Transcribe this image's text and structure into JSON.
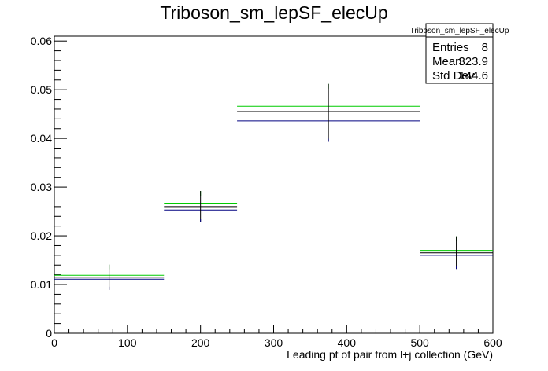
{
  "chart_data": {
    "type": "histogram",
    "title": "Triboson_sm_lepSF_elecUp",
    "xlabel": "Leading pt of pair from l+j collection (GeV)",
    "ylabel": "",
    "xlim": [
      0,
      600
    ],
    "ylim": [
      0,
      0.061
    ],
    "x_ticks": [
      0,
      100,
      200,
      300,
      400,
      500,
      600
    ],
    "x_tick_labels": [
      "0",
      "100",
      "200",
      "300",
      "400",
      "500",
      "600"
    ],
    "y_ticks": [
      0,
      0.01,
      0.02,
      0.03,
      0.04,
      0.05,
      0.06
    ],
    "y_tick_labels": [
      "0",
      "0.01",
      "0.02",
      "0.03",
      "0.04",
      "0.05",
      "0.06"
    ],
    "bins": [
      {
        "x_low": 0,
        "x_high": 150,
        "center": 75,
        "value": 0.0115,
        "err_low": 0.0089,
        "err_high": 0.0141,
        "up": 0.0119,
        "down": 0.0111
      },
      {
        "x_low": 150,
        "x_high": 250,
        "center": 200,
        "value": 0.026,
        "err_low": 0.0229,
        "err_high": 0.0292,
        "up": 0.0267,
        "down": 0.0253
      },
      {
        "x_low": 250,
        "x_high": 500,
        "center": 375,
        "value": 0.0455,
        "err_low": 0.0393,
        "err_high": 0.0512,
        "up": 0.0466,
        "down": 0.0436
      },
      {
        "x_low": 500,
        "x_high": 600,
        "center": 550,
        "value": 0.0165,
        "err_low": 0.0132,
        "err_high": 0.0199,
        "up": 0.017,
        "down": 0.016
      }
    ],
    "series_colors": {
      "nominal": "#000000",
      "up": "#00cc00",
      "down": "#000080"
    },
    "stats_box": {
      "title": "Triboson_sm_lepSF_elecUp",
      "rows": [
        {
          "label": "Entries",
          "value": "8"
        },
        {
          "label": "Mean",
          "value": "323.9"
        },
        {
          "label": "Std Dev",
          "value": "144.6"
        }
      ]
    },
    "grid": false,
    "legend": "none"
  }
}
